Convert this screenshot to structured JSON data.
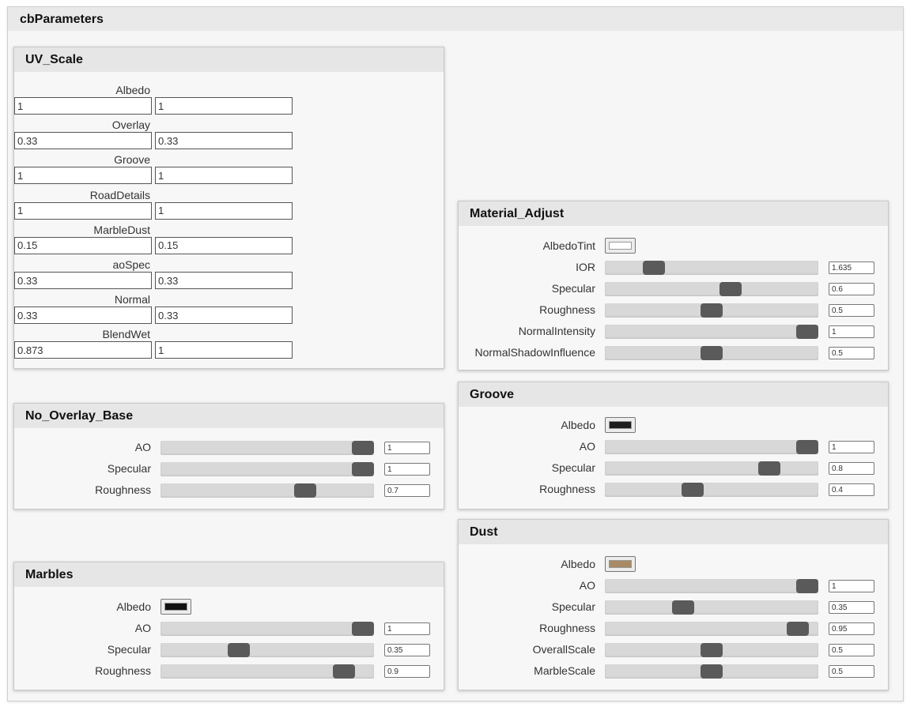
{
  "outer_title": "cbParameters",
  "uv_scale": {
    "title": "UV_Scale",
    "rows": [
      {
        "label": "Albedo",
        "u": "1",
        "v": "1"
      },
      {
        "label": "Overlay",
        "u": "0.33",
        "v": "0.33"
      },
      {
        "label": "Groove",
        "u": "1",
        "v": "1"
      },
      {
        "label": "RoadDetails",
        "u": "1",
        "v": "1"
      },
      {
        "label": "MarbleDust",
        "u": "0.15",
        "v": "0.15"
      },
      {
        "label": "aoSpec",
        "u": "0.33",
        "v": "0.33"
      },
      {
        "label": "Normal",
        "u": "0.33",
        "v": "0.33"
      },
      {
        "label": "BlendWet",
        "u": "0.873",
        "v": "1"
      }
    ]
  },
  "no_overlay_base": {
    "title": "No_Overlay_Base",
    "rows": [
      {
        "type": "slider",
        "label": "AO",
        "value": "1",
        "level": 1.0
      },
      {
        "type": "slider",
        "label": "Specular",
        "value": "1",
        "level": 1.0
      },
      {
        "type": "slider",
        "label": "Roughness",
        "value": "0.7",
        "level": 0.7
      }
    ]
  },
  "marbles": {
    "title": "Marbles",
    "rows": [
      {
        "type": "color",
        "label": "Albedo",
        "color": "#111111"
      },
      {
        "type": "slider",
        "label": "AO",
        "value": "1",
        "level": 1.0
      },
      {
        "type": "slider",
        "label": "Specular",
        "value": "0.35",
        "level": 0.35
      },
      {
        "type": "slider",
        "label": "Roughness",
        "value": "0.9",
        "level": 0.9
      }
    ]
  },
  "material_adjust": {
    "title": "Material_Adjust",
    "rows": [
      {
        "type": "color",
        "label": "AlbedoTint",
        "color": "#ffffff"
      },
      {
        "type": "slider",
        "label": "IOR",
        "value": "1.635",
        "level": 0.2
      },
      {
        "type": "slider",
        "label": "Specular",
        "value": "0.6",
        "level": 0.6
      },
      {
        "type": "slider",
        "label": "Roughness",
        "value": "0.5",
        "level": 0.5
      },
      {
        "type": "slider",
        "label": "NormalIntensity",
        "value": "1",
        "level": 1.0
      },
      {
        "type": "slider",
        "label": "NormalShadowInfluence",
        "value": "0.5",
        "level": 0.5
      }
    ]
  },
  "groove": {
    "title": "Groove",
    "rows": [
      {
        "type": "color",
        "label": "Albedo",
        "color": "#1e1e1e"
      },
      {
        "type": "slider",
        "label": "AO",
        "value": "1",
        "level": 1.0
      },
      {
        "type": "slider",
        "label": "Specular",
        "value": "0.8",
        "level": 0.8
      },
      {
        "type": "slider",
        "label": "Roughness",
        "value": "0.4",
        "level": 0.4
      }
    ]
  },
  "dust": {
    "title": "Dust",
    "rows": [
      {
        "type": "color",
        "label": "Albedo",
        "color": "#a88a64"
      },
      {
        "type": "slider",
        "label": "AO",
        "value": "1",
        "level": 1.0
      },
      {
        "type": "slider",
        "label": "Specular",
        "value": "0.35",
        "level": 0.35
      },
      {
        "type": "slider",
        "label": "Roughness",
        "value": "0.95",
        "level": 0.95
      },
      {
        "type": "slider",
        "label": "OverallScale",
        "value": "0.5",
        "level": 0.5
      },
      {
        "type": "slider",
        "label": "MarbleScale",
        "value": "0.5",
        "level": 0.5
      }
    ]
  }
}
